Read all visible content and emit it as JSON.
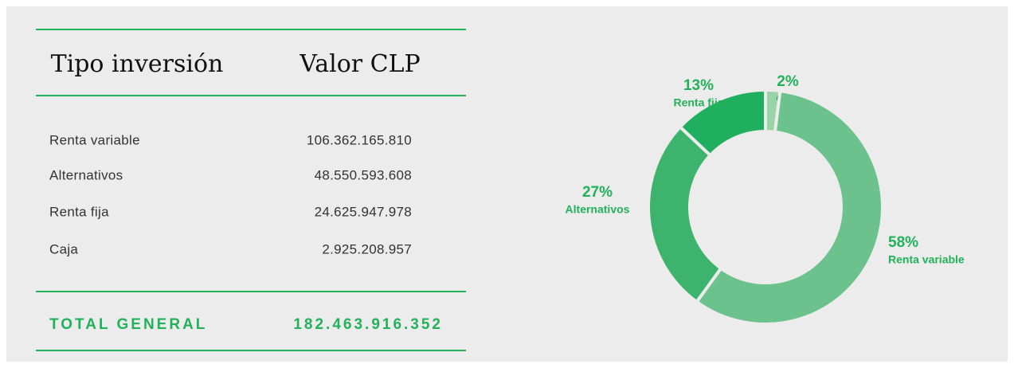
{
  "table": {
    "headers": [
      "Tipo inversión",
      "Valor CLP"
    ],
    "rows": [
      [
        "Renta variable",
        "106.362.165.810"
      ],
      [
        "Alternativos",
        "48.550.593.608"
      ],
      [
        "Renta fija",
        "24.625.947.978"
      ],
      [
        "Caja",
        "2.925.208.957"
      ]
    ],
    "total": [
      "TOTAL GENERAL",
      "182.463.916.352"
    ]
  },
  "chart_data": {
    "type": "pie",
    "donut": true,
    "categories": [
      "Caja",
      "Renta variable",
      "Alternativos",
      "Renta fija"
    ],
    "values": [
      2,
      58,
      27,
      13
    ],
    "value_labels": [
      "2%",
      "58%",
      "27%",
      "13%"
    ],
    "colors": [
      "#99d4a8",
      "#6cc28c",
      "#3db46e",
      "#1faf5f"
    ]
  }
}
